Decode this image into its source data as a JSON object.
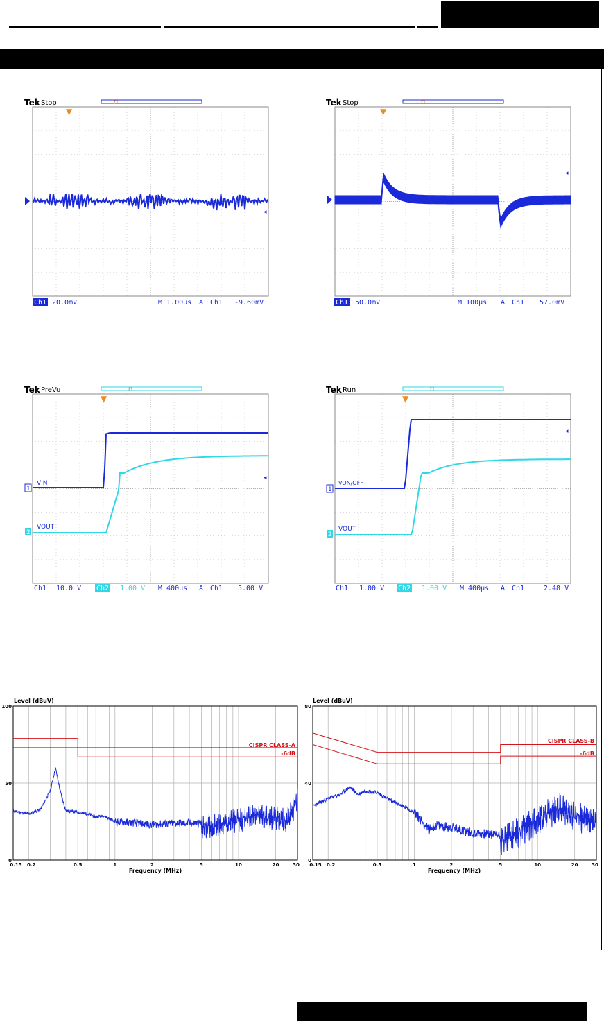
{
  "colors": {
    "ch1": "#1a2ad8",
    "ch2": "#2ed8e6",
    "marker": "#f08a1c",
    "grid": "#9a9a9a",
    "limit": "#d4141c",
    "emi_trace": "#1a2ad8"
  },
  "scope1": {
    "brand": "Tek",
    "state": "Stop",
    "ch1_label": "Ch1",
    "ch1_scale": "20.0mV",
    "timebase": "M 1.00µs",
    "trig_mode": "A",
    "trig_src": "Ch1",
    "trig_level": "-9.60mV"
  },
  "scope2": {
    "brand": "Tek",
    "state": "Stop",
    "ch1_label": "Ch1",
    "ch1_scale": "50.0mV",
    "timebase": "M 100µs",
    "trig_mode": "A",
    "trig_src": "Ch1",
    "trig_level": "57.0mV"
  },
  "scope3": {
    "brand": "Tek",
    "state": "PreVu",
    "ch1_label": "Ch1",
    "ch1_scale": "10.0 V",
    "ch2_label": "Ch2",
    "ch2_scale": "1.00 V",
    "timebase": "M 400µs",
    "trig_mode": "A",
    "trig_src": "Ch1",
    "trig_level": "5.00 V",
    "trace1_label": "VIN",
    "trace2_label": "VOUT",
    "marker1": "1",
    "marker2": "2"
  },
  "scope4": {
    "brand": "Tek",
    "state": "Run",
    "ch1_label": "Ch1",
    "ch1_scale": "1.00 V",
    "ch2_label": "Ch2",
    "ch2_scale": "1.00 V",
    "timebase": "M 400µs",
    "trig_mode": "A",
    "trig_src": "Ch1",
    "trig_level": "2.48 V",
    "trace1_label": "VON/OFF",
    "trace2_label": "VOUT",
    "marker1": "1",
    "marker2": "2"
  },
  "chart_data": [
    {
      "type": "line",
      "ylabel": "Level (dBuV)",
      "xlabel": "Frequency (MHz)",
      "xscale": "log",
      "xlim": [
        0.15,
        30
      ],
      "ylim": [
        0,
        100
      ],
      "yticks": [
        "0",
        "50",
        "100"
      ],
      "xticks": [
        "0.15",
        "0.2",
        "0.5",
        "1",
        "2",
        "5",
        "10",
        "20",
        "30"
      ],
      "grid": true,
      "limits": [
        {
          "name": "CISPR CLASS-A",
          "x": [
            0.15,
            0.5,
            0.5,
            30
          ],
          "y": [
            79,
            79,
            73,
            73
          ]
        },
        {
          "name": "-6dB",
          "x": [
            0.15,
            0.5,
            0.5,
            30
          ],
          "y": [
            73,
            73,
            67,
            67
          ]
        }
      ],
      "series": [
        {
          "x": [
            0.15,
            0.2,
            0.25,
            0.3,
            0.33,
            0.36,
            0.4,
            0.5,
            0.6,
            0.7,
            0.8,
            1,
            1.5,
            2,
            3,
            5,
            7,
            10,
            15,
            20,
            25,
            30
          ],
          "y": [
            32,
            30,
            33,
            45,
            60,
            45,
            32,
            31,
            30,
            28,
            29,
            25,
            24,
            23,
            24,
            24,
            26,
            29,
            32,
            30,
            29,
            42
          ]
        }
      ]
    },
    {
      "type": "line",
      "ylabel": "Level (dBuV)",
      "xlabel": "Frequency (MHz)",
      "xscale": "log",
      "xlim": [
        0.15,
        30
      ],
      "ylim": [
        0,
        80
      ],
      "yticks": [
        "0",
        "40",
        "80"
      ],
      "xticks": [
        "0.15",
        "0.2",
        "0.5",
        "1",
        "2",
        "5",
        "10",
        "20",
        "30"
      ],
      "grid": true,
      "limits": [
        {
          "name": "CISPR CLASS-B",
          "x": [
            0.15,
            0.5,
            5,
            5,
            30
          ],
          "y": [
            66,
            56,
            56,
            60,
            60
          ]
        },
        {
          "name": "-6dB",
          "x": [
            0.15,
            0.5,
            5,
            5,
            30
          ],
          "y": [
            60,
            50,
            50,
            54,
            54
          ]
        }
      ],
      "series": [
        {
          "x": [
            0.15,
            0.2,
            0.25,
            0.3,
            0.35,
            0.4,
            0.5,
            0.6,
            0.8,
            1,
            1.3,
            1.5,
            2,
            3,
            5,
            7,
            10,
            15,
            20,
            30
          ],
          "y": [
            28,
            32,
            34,
            38,
            34,
            36,
            35,
            32,
            28,
            25,
            16,
            18,
            17,
            14,
            13,
            17,
            24,
            30,
            26,
            22
          ]
        }
      ]
    }
  ]
}
